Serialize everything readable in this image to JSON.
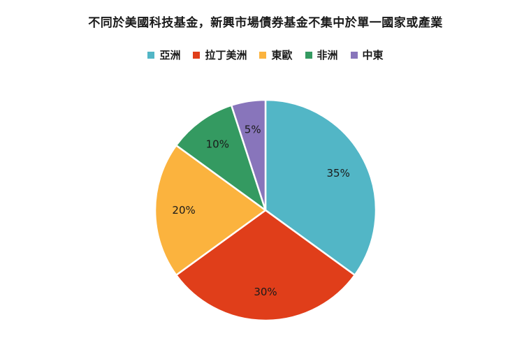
{
  "chart_data": {
    "type": "pie",
    "title": "不同於美國科技基金，新興市場債券基金不集中於單一國家或產業",
    "categories": [
      "亞洲",
      "拉丁美洲",
      "東歐",
      "非洲",
      "中東"
    ],
    "values": [
      35,
      30,
      20,
      10,
      5
    ],
    "value_labels": [
      "35%",
      "30%",
      "20%",
      "10%",
      "5%"
    ],
    "colors": [
      "#52b6c6",
      "#e03e1a",
      "#fbb33e",
      "#349a61",
      "#8875bb"
    ],
    "legend": "top",
    "start_angle": "12 o'clock",
    "direction": "clockwise"
  }
}
